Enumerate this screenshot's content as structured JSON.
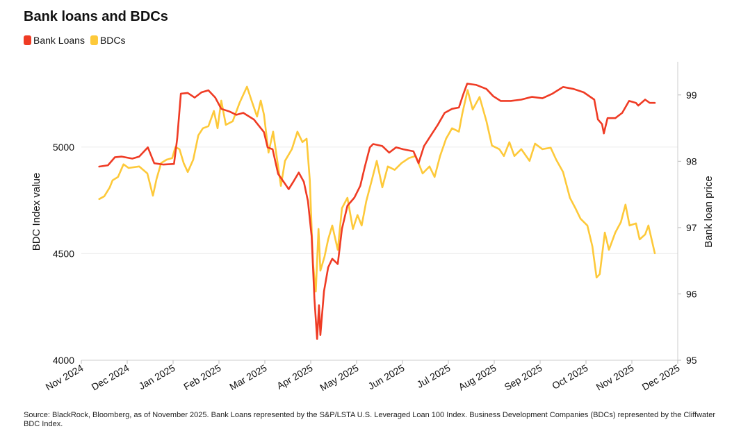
{
  "chart_data": {
    "type": "line",
    "title": "Bank loans and BDCs",
    "ylabel": "BDC Index value",
    "y2label": "Bank loan price",
    "source": "Source: BlackRock, Bloomberg, as of November 2025. Bank Loans represented by the S&P/LSTA U.S. Leveraged Loan 100 Index. Business Development Companies (BDCs) represented by the Cliffwater BDC Index.",
    "legend": "top-left",
    "grid": true,
    "xlim": [
      0,
      13
    ],
    "xticks": [
      {
        "value": 0,
        "label": "Nov 2024"
      },
      {
        "value": 1,
        "label": "Dec 2024"
      },
      {
        "value": 2,
        "label": "Jan 2025"
      },
      {
        "value": 3,
        "label": "Feb 2025"
      },
      {
        "value": 4,
        "label": "Mar 2025"
      },
      {
        "value": 5,
        "label": "Apr 2025"
      },
      {
        "value": 6,
        "label": "May 2025"
      },
      {
        "value": 7,
        "label": "Jun 2025"
      },
      {
        "value": 8,
        "label": "Jul 2025"
      },
      {
        "value": 9,
        "label": "Aug 2025"
      },
      {
        "value": 10,
        "label": "Sep 2025"
      },
      {
        "value": 11,
        "label": "Oct 2025"
      },
      {
        "value": 12,
        "label": "Nov 2025"
      },
      {
        "value": 13,
        "label": "Dec 2025"
      }
    ],
    "ylim": [
      4000,
      5400
    ],
    "yticks": [
      4000,
      4500,
      5000
    ],
    "y2lim": [
      95,
      99.5
    ],
    "y2ticks": [
      95,
      96,
      97,
      98,
      99
    ],
    "series": [
      {
        "name": "Bank Loans",
        "color": "#ef3b24",
        "axis": "y2",
        "x": [
          0.39,
          0.58,
          0.73,
          0.88,
          1.11,
          1.26,
          1.45,
          1.59,
          1.79,
          2.02,
          2.09,
          2.17,
          2.32,
          2.47,
          2.62,
          2.77,
          2.92,
          3.05,
          3.23,
          3.38,
          3.53,
          3.76,
          3.91,
          3.98,
          4.06,
          4.17,
          4.29,
          4.41,
          4.52,
          4.62,
          4.74,
          4.85,
          4.94,
          5.02,
          5.08,
          5.14,
          5.18,
          5.21,
          5.29,
          5.38,
          5.47,
          5.59,
          5.68,
          5.8,
          5.95,
          6.08,
          6.18,
          6.29,
          6.36,
          6.56,
          6.71,
          6.86,
          7.02,
          7.24,
          7.35,
          7.47,
          7.62,
          7.77,
          7.92,
          8.08,
          8.23,
          8.33,
          8.41,
          8.61,
          8.83,
          8.98,
          9.14,
          9.36,
          9.59,
          9.82,
          10.05,
          10.27,
          10.5,
          10.73,
          10.95,
          11.18,
          11.26,
          11.35,
          11.39,
          11.47,
          11.64,
          11.79,
          11.94,
          12.09,
          12.14,
          12.29,
          12.39,
          12.5
        ],
        "values": [
          97.92,
          97.94,
          98.06,
          98.07,
          98.04,
          98.07,
          98.21,
          97.97,
          97.95,
          97.96,
          98.34,
          99.02,
          99.03,
          98.96,
          99.04,
          99.07,
          98.96,
          98.79,
          98.75,
          98.7,
          98.73,
          98.63,
          98.5,
          98.44,
          98.21,
          98.18,
          97.81,
          97.69,
          97.58,
          97.69,
          97.83,
          97.69,
          97.4,
          96.87,
          95.93,
          95.32,
          95.83,
          95.38,
          96.04,
          96.4,
          96.53,
          96.45,
          96.98,
          97.33,
          97.45,
          97.63,
          97.92,
          98.21,
          98.26,
          98.23,
          98.13,
          98.21,
          98.18,
          98.15,
          97.97,
          98.23,
          98.39,
          98.55,
          98.73,
          98.79,
          98.81,
          99.02,
          99.17,
          99.15,
          99.09,
          98.98,
          98.91,
          98.91,
          98.93,
          98.97,
          98.95,
          99.02,
          99.12,
          99.09,
          99.04,
          98.93,
          98.63,
          98.56,
          98.42,
          98.65,
          98.65,
          98.73,
          98.91,
          98.88,
          98.84,
          98.93,
          98.88,
          98.88
        ]
      },
      {
        "name": "BDCs",
        "color": "#fdc93a",
        "axis": "y",
        "x": [
          0.39,
          0.5,
          0.62,
          0.68,
          0.8,
          0.92,
          1.03,
          1.26,
          1.44,
          1.56,
          1.64,
          1.74,
          1.86,
          1.98,
          2.05,
          2.14,
          2.23,
          2.32,
          2.44,
          2.55,
          2.65,
          2.77,
          2.89,
          2.97,
          3.05,
          3.15,
          3.3,
          3.45,
          3.61,
          3.71,
          3.83,
          3.91,
          3.98,
          4.08,
          4.18,
          4.29,
          4.35,
          4.44,
          4.59,
          4.71,
          4.82,
          4.91,
          4.98,
          5.05,
          5.11,
          5.17,
          5.21,
          5.3,
          5.38,
          5.47,
          5.59,
          5.68,
          5.8,
          5.92,
          6.02,
          6.11,
          6.21,
          6.33,
          6.44,
          6.56,
          6.68,
          6.83,
          6.98,
          7.14,
          7.29,
          7.44,
          7.59,
          7.7,
          7.82,
          7.95,
          8.08,
          8.23,
          8.3,
          8.42,
          8.53,
          8.68,
          8.83,
          8.95,
          9.11,
          9.21,
          9.33,
          9.44,
          9.59,
          9.77,
          9.89,
          10.05,
          10.23,
          10.35,
          10.5,
          10.65,
          10.77,
          10.88,
          11.03,
          11.14,
          11.23,
          11.3,
          11.41,
          11.5,
          11.64,
          11.76,
          11.86,
          11.95,
          12.09,
          12.17,
          12.29,
          12.36,
          12.5
        ],
        "values": [
          4756,
          4769,
          4811,
          4844,
          4860,
          4919,
          4902,
          4909,
          4876,
          4772,
          4850,
          4925,
          4941,
          4948,
          5000,
          4990,
          4925,
          4883,
          4941,
          5055,
          5088,
          5098,
          5169,
          5088,
          5218,
          5104,
          5121,
          5208,
          5283,
          5218,
          5143,
          5218,
          5153,
          4974,
          5072,
          4909,
          4818,
          4935,
          4990,
          5072,
          5023,
          5039,
          4844,
          4453,
          4322,
          4616,
          4420,
          4485,
          4567,
          4632,
          4518,
          4713,
          4762,
          4616,
          4681,
          4632,
          4746,
          4844,
          4935,
          4811,
          4909,
          4893,
          4925,
          4948,
          4958,
          4876,
          4909,
          4860,
          4958,
          5039,
          5088,
          5072,
          5153,
          5267,
          5176,
          5235,
          5121,
          5007,
          4990,
          4958,
          5023,
          4958,
          4990,
          4935,
          5016,
          4990,
          4997,
          4941,
          4883,
          4762,
          4713,
          4664,
          4632,
          4534,
          4388,
          4404,
          4599,
          4518,
          4599,
          4648,
          4730,
          4632,
          4642,
          4567,
          4590,
          4632,
          4502
        ]
      }
    ]
  }
}
